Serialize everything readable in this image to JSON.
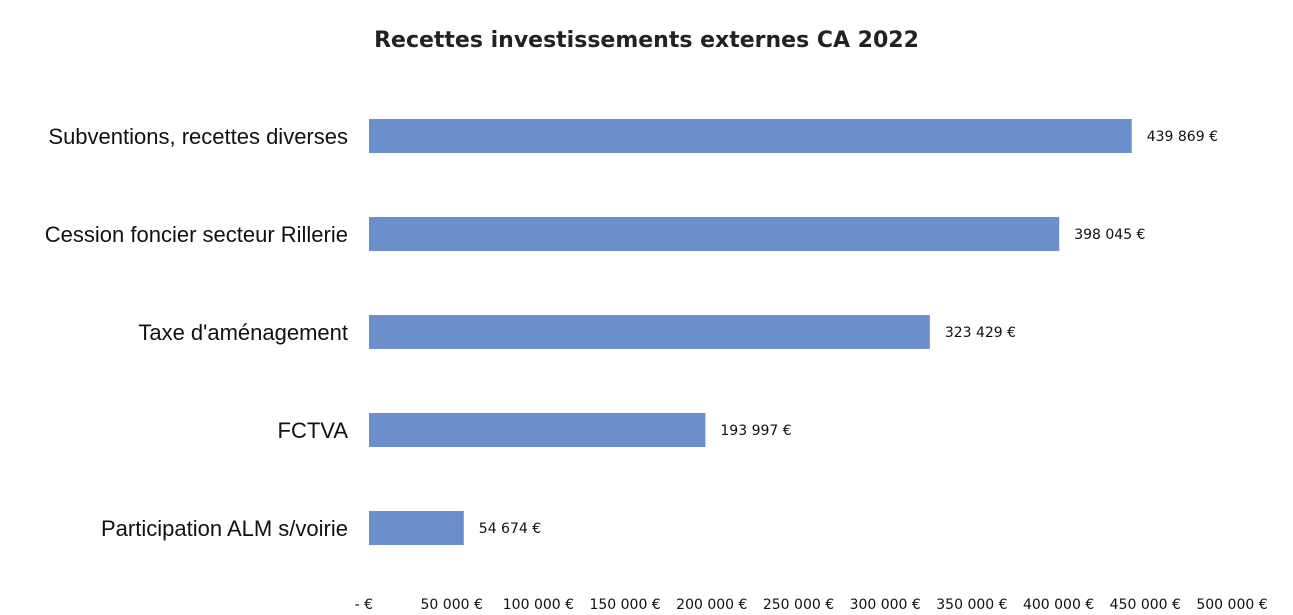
{
  "chart_data": {
    "type": "bar",
    "orientation": "horizontal",
    "title": "Recettes investissements externes CA 2022",
    "categories": [
      "Subventions, recettes diverses",
      "Cession foncier secteur Rillerie",
      "Taxe d'aménagement",
      "FCTVA",
      "Participation ALM s/voirie"
    ],
    "values": [
      439869,
      398045,
      323429,
      193997,
      54674
    ],
    "value_labels": [
      "439 869 €",
      "398 045 €",
      "323 429 €",
      "193 997 €",
      "54 674 €"
    ],
    "xlim": [
      0,
      500000
    ],
    "x_ticks": [
      0,
      50000,
      100000,
      150000,
      200000,
      250000,
      300000,
      350000,
      400000,
      450000,
      500000
    ],
    "x_tick_labels": [
      "- €",
      "50 000 €",
      "100 000 €",
      "150 000 €",
      "200 000 €",
      "250 000 €",
      "300 000 €",
      "350 000 €",
      "400 000 €",
      "450 000 €",
      "500 000 €"
    ],
    "bar_color": "#6a8fcb",
    "grid": false,
    "legend": "none"
  }
}
